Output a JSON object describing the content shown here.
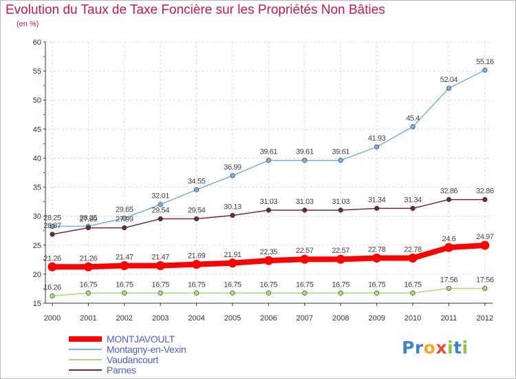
{
  "title": "Evolution du Taux de Taxe Foncière sur les Propriétés Non Bâties",
  "subtitle": "(en %)",
  "logo": {
    "text": "Proxiti",
    "letters": [
      {
        "ch": "P",
        "color": "#3a86c8"
      },
      {
        "ch": "r",
        "color": "#3a86c8"
      },
      {
        "ch": "o",
        "color": "#f5a623"
      },
      {
        "ch": "x",
        "color": "#e84c3d"
      },
      {
        "ch": "i",
        "color": "#8cc63f"
      },
      {
        "ch": "t",
        "color": "#3a86c8"
      },
      {
        "ch": "i",
        "color": "#8cc63f"
      }
    ]
  },
  "chart_data": {
    "type": "line",
    "title": "Evolution du Taux de Taxe Foncière sur les Propriétés Non Bâties",
    "ylabel": "(en %)",
    "ylim": [
      15,
      60
    ],
    "yticks": [
      15,
      20,
      25,
      30,
      35,
      40,
      45,
      50,
      55,
      60
    ],
    "grid": true,
    "legend_position": "bottom-left",
    "x": [
      "2000",
      "2001",
      "2002",
      "2003",
      "2004",
      "2005",
      "2006",
      "2007",
      "2008",
      "2009",
      "2010",
      "2011",
      "2012"
    ],
    "series": [
      {
        "name": "MONTJAVOULT",
        "color": "#ff0000",
        "values": [
          21.26,
          21.26,
          21.47,
          21.47,
          21.69,
          21.91,
          22.35,
          22.57,
          22.57,
          22.78,
          22.78,
          24.6,
          24.97
        ],
        "labels": [
          "21.26",
          "21.26",
          "21.47",
          "21.47",
          "21.69",
          "21.91",
          "22.35",
          "22.57",
          "22.57",
          "22.78",
          "22.78",
          "24.6",
          "24.97"
        ]
      },
      {
        "name": "Montagny-en-Vexin",
        "color": "#7ab0dd",
        "values": [
          28.25,
          28.25,
          29.65,
          32.01,
          34.55,
          36.99,
          39.61,
          39.61,
          39.61,
          41.93,
          45.4,
          52.04,
          55.16
        ],
        "labels": [
          "28.25",
          "28.25",
          "29.65",
          "32.01",
          "34.55",
          "36.99",
          "39.61",
          "39.61",
          "39.61",
          "41.93",
          "45.4",
          "52.04",
          "55.16"
        ]
      },
      {
        "name": "Vaudancourt",
        "color": "#a6dc7a",
        "values": [
          16.26,
          16.75,
          16.75,
          16.75,
          16.75,
          16.75,
          16.75,
          16.75,
          16.75,
          16.75,
          16.75,
          17.56,
          17.56
        ],
        "labels": [
          "16.26",
          "16.75",
          "16.75",
          "16.75",
          "16.75",
          "16.75",
          "16.75",
          "16.75",
          "16.75",
          "16.75",
          "16.75",
          "17.56",
          "17.56"
        ]
      },
      {
        "name": "Parnes",
        "color": "#6b2b33",
        "values": [
          26.87,
          27.99,
          27.99,
          29.54,
          29.54,
          30.13,
          31.03,
          31.03,
          31.03,
          31.34,
          31.34,
          32.86,
          32.86
        ],
        "labels": [
          "26.87",
          "27.99",
          "27.99",
          "29.54",
          "29.54",
          "30.13",
          "31.03",
          "31.03",
          "31.03",
          "31.34",
          "31.34",
          "32.86",
          "32.86"
        ]
      }
    ]
  }
}
